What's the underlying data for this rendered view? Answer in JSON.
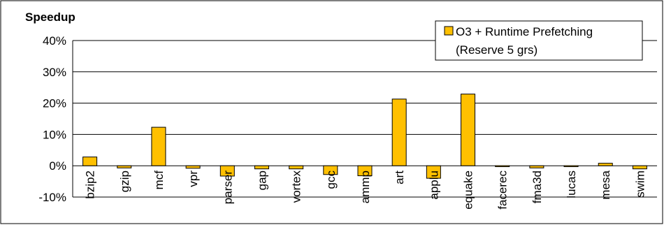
{
  "chart_data": {
    "type": "bar",
    "ylabel": "Speedup",
    "categories": [
      "bzip2",
      "gzip",
      "mcf",
      "vpr",
      "parser",
      "gap",
      "vortex",
      "gcc",
      "ammp",
      "art",
      "applu",
      "equake",
      "facerec",
      "fma3d",
      "lucas",
      "mesa",
      "swim"
    ],
    "series": [
      {
        "name_lines": [
          "O3 + Runtime Prefetching",
          "(Reserve 5 grs)"
        ],
        "color": "#FFC000",
        "values": [
          2.8,
          -0.7,
          12.3,
          -0.8,
          -3.3,
          -1.0,
          -1.0,
          -2.8,
          -3.2,
          21.3,
          -4.0,
          22.9,
          -0.3,
          -0.7,
          -0.3,
          0.8,
          -1.0
        ]
      }
    ],
    "ylim": [
      -10,
      40
    ],
    "yticks": [
      40,
      30,
      20,
      10,
      0,
      -10
    ],
    "ytick_labels": [
      "40%",
      "30%",
      "20%",
      "10%",
      "0%",
      "-10%"
    ],
    "grid": true,
    "legend": "top-right"
  }
}
